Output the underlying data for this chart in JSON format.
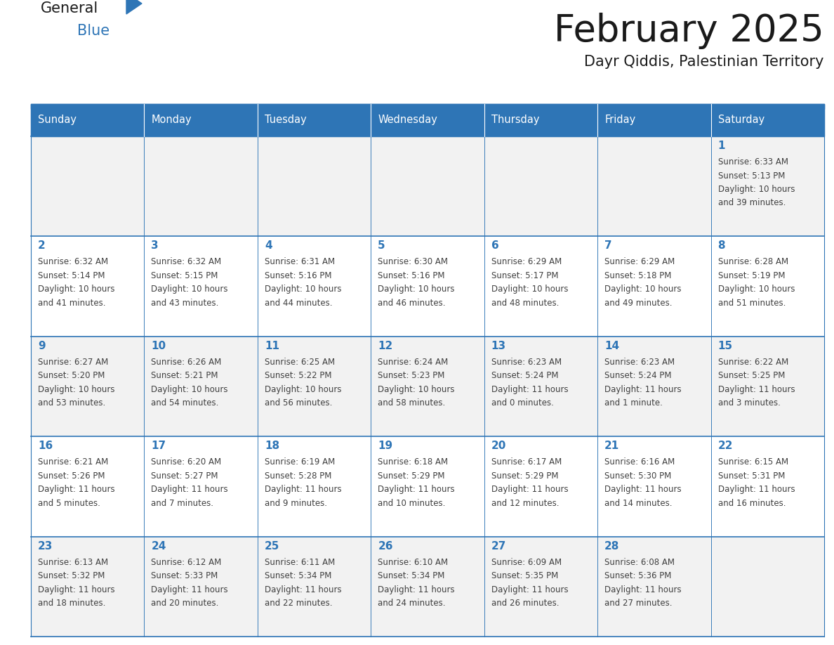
{
  "title": "February 2025",
  "subtitle": "Dayr Qiddis, Palestinian Territory",
  "days_of_week": [
    "Sunday",
    "Monday",
    "Tuesday",
    "Wednesday",
    "Thursday",
    "Friday",
    "Saturday"
  ],
  "header_bg": "#2E75B6",
  "header_text": "#FFFFFF",
  "cell_bg_odd": "#F2F2F2",
  "cell_bg_even": "#FFFFFF",
  "border_color": "#2E75B6",
  "day_number_color": "#2E75B6",
  "text_color": "#404040",
  "title_color": "#1a1a1a",
  "logo_general_color": "#1a1a1a",
  "logo_blue_color": "#2E75B6",
  "weeks": [
    [
      {
        "day": null,
        "info": null
      },
      {
        "day": null,
        "info": null
      },
      {
        "day": null,
        "info": null
      },
      {
        "day": null,
        "info": null
      },
      {
        "day": null,
        "info": null
      },
      {
        "day": null,
        "info": null
      },
      {
        "day": 1,
        "info": "Sunrise: 6:33 AM\nSunset: 5:13 PM\nDaylight: 10 hours\nand 39 minutes."
      }
    ],
    [
      {
        "day": 2,
        "info": "Sunrise: 6:32 AM\nSunset: 5:14 PM\nDaylight: 10 hours\nand 41 minutes."
      },
      {
        "day": 3,
        "info": "Sunrise: 6:32 AM\nSunset: 5:15 PM\nDaylight: 10 hours\nand 43 minutes."
      },
      {
        "day": 4,
        "info": "Sunrise: 6:31 AM\nSunset: 5:16 PM\nDaylight: 10 hours\nand 44 minutes."
      },
      {
        "day": 5,
        "info": "Sunrise: 6:30 AM\nSunset: 5:16 PM\nDaylight: 10 hours\nand 46 minutes."
      },
      {
        "day": 6,
        "info": "Sunrise: 6:29 AM\nSunset: 5:17 PM\nDaylight: 10 hours\nand 48 minutes."
      },
      {
        "day": 7,
        "info": "Sunrise: 6:29 AM\nSunset: 5:18 PM\nDaylight: 10 hours\nand 49 minutes."
      },
      {
        "day": 8,
        "info": "Sunrise: 6:28 AM\nSunset: 5:19 PM\nDaylight: 10 hours\nand 51 minutes."
      }
    ],
    [
      {
        "day": 9,
        "info": "Sunrise: 6:27 AM\nSunset: 5:20 PM\nDaylight: 10 hours\nand 53 minutes."
      },
      {
        "day": 10,
        "info": "Sunrise: 6:26 AM\nSunset: 5:21 PM\nDaylight: 10 hours\nand 54 minutes."
      },
      {
        "day": 11,
        "info": "Sunrise: 6:25 AM\nSunset: 5:22 PM\nDaylight: 10 hours\nand 56 minutes."
      },
      {
        "day": 12,
        "info": "Sunrise: 6:24 AM\nSunset: 5:23 PM\nDaylight: 10 hours\nand 58 minutes."
      },
      {
        "day": 13,
        "info": "Sunrise: 6:23 AM\nSunset: 5:24 PM\nDaylight: 11 hours\nand 0 minutes."
      },
      {
        "day": 14,
        "info": "Sunrise: 6:23 AM\nSunset: 5:24 PM\nDaylight: 11 hours\nand 1 minute."
      },
      {
        "day": 15,
        "info": "Sunrise: 6:22 AM\nSunset: 5:25 PM\nDaylight: 11 hours\nand 3 minutes."
      }
    ],
    [
      {
        "day": 16,
        "info": "Sunrise: 6:21 AM\nSunset: 5:26 PM\nDaylight: 11 hours\nand 5 minutes."
      },
      {
        "day": 17,
        "info": "Sunrise: 6:20 AM\nSunset: 5:27 PM\nDaylight: 11 hours\nand 7 minutes."
      },
      {
        "day": 18,
        "info": "Sunrise: 6:19 AM\nSunset: 5:28 PM\nDaylight: 11 hours\nand 9 minutes."
      },
      {
        "day": 19,
        "info": "Sunrise: 6:18 AM\nSunset: 5:29 PM\nDaylight: 11 hours\nand 10 minutes."
      },
      {
        "day": 20,
        "info": "Sunrise: 6:17 AM\nSunset: 5:29 PM\nDaylight: 11 hours\nand 12 minutes."
      },
      {
        "day": 21,
        "info": "Sunrise: 6:16 AM\nSunset: 5:30 PM\nDaylight: 11 hours\nand 14 minutes."
      },
      {
        "day": 22,
        "info": "Sunrise: 6:15 AM\nSunset: 5:31 PM\nDaylight: 11 hours\nand 16 minutes."
      }
    ],
    [
      {
        "day": 23,
        "info": "Sunrise: 6:13 AM\nSunset: 5:32 PM\nDaylight: 11 hours\nand 18 minutes."
      },
      {
        "day": 24,
        "info": "Sunrise: 6:12 AM\nSunset: 5:33 PM\nDaylight: 11 hours\nand 20 minutes."
      },
      {
        "day": 25,
        "info": "Sunrise: 6:11 AM\nSunset: 5:34 PM\nDaylight: 11 hours\nand 22 minutes."
      },
      {
        "day": 26,
        "info": "Sunrise: 6:10 AM\nSunset: 5:34 PM\nDaylight: 11 hours\nand 24 minutes."
      },
      {
        "day": 27,
        "info": "Sunrise: 6:09 AM\nSunset: 5:35 PM\nDaylight: 11 hours\nand 26 minutes."
      },
      {
        "day": 28,
        "info": "Sunrise: 6:08 AM\nSunset: 5:36 PM\nDaylight: 11 hours\nand 27 minutes."
      },
      {
        "day": null,
        "info": null
      }
    ]
  ],
  "figwidth": 11.88,
  "figheight": 9.18,
  "dpi": 100
}
